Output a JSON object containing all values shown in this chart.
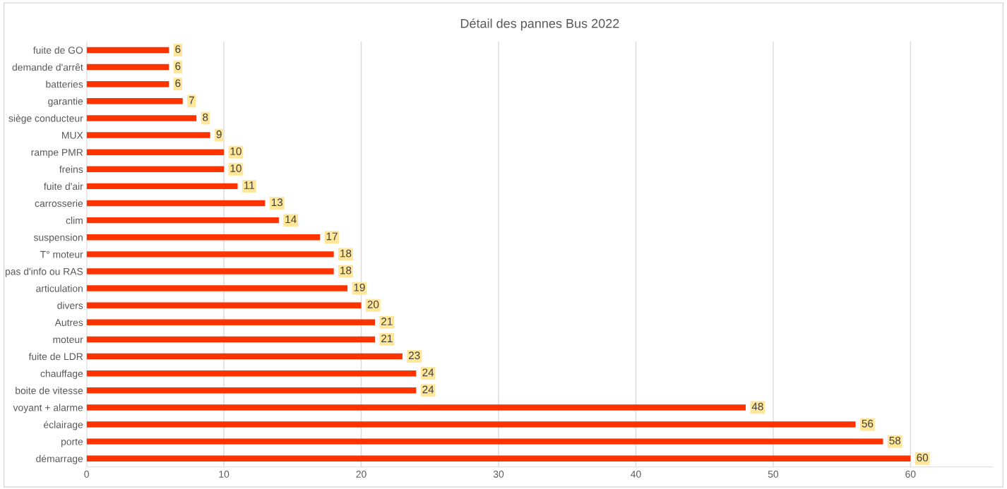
{
  "chart_data": {
    "type": "bar",
    "orientation": "horizontal",
    "title": "Détail des pannes Bus 2022",
    "categories": [
      "fuite de GO",
      "demande d'arrêt",
      "batteries",
      "garantie",
      "siège conducteur",
      "MUX",
      "rampe PMR",
      "freins",
      "fuite d'air",
      "carrosserie",
      "clim",
      "suspension",
      "T° moteur",
      "pas d'info ou RAS",
      "articulation",
      "divers",
      "Autres",
      "moteur",
      "fuite de LDR",
      "chauffage",
      "boite de vitesse",
      "voyant + alarme",
      "éclairage",
      "porte",
      "démarrage"
    ],
    "values": [
      6,
      6,
      6,
      7,
      8,
      9,
      10,
      10,
      11,
      13,
      14,
      17,
      18,
      18,
      19,
      20,
      21,
      21,
      23,
      24,
      24,
      48,
      56,
      58,
      60
    ],
    "color": "#ff3300",
    "xlim": [
      0,
      66
    ],
    "xticks": [
      0,
      10,
      20,
      30,
      40,
      50,
      60
    ],
    "grid": "x",
    "data_labels": true
  }
}
